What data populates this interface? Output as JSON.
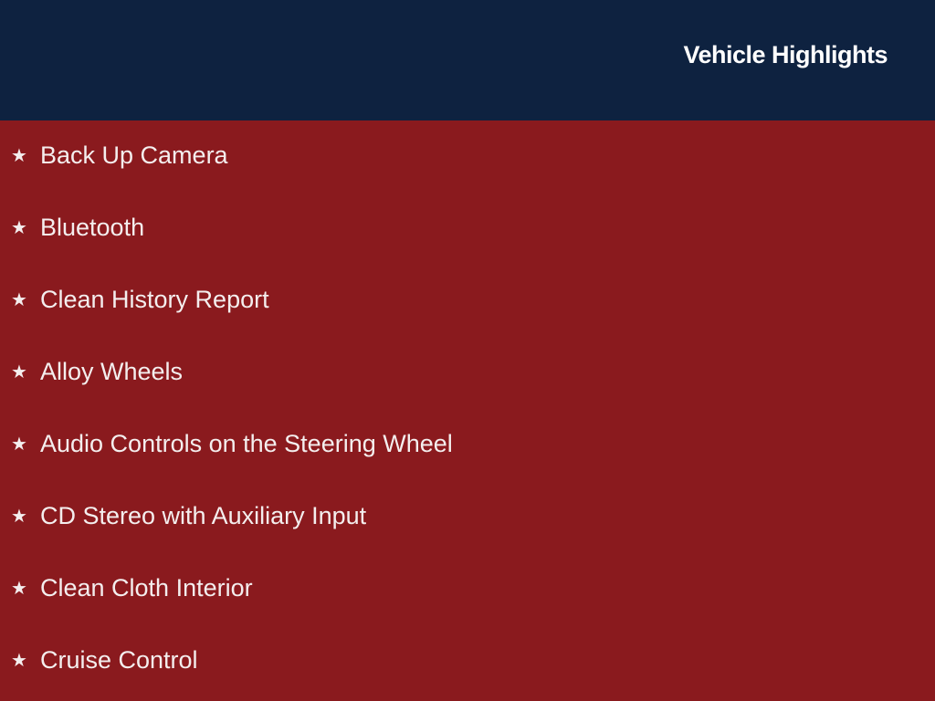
{
  "header": {
    "title": "Vehicle Highlights"
  },
  "colors": {
    "header_bg": "#0e2240",
    "body_bg": "#8a1a1e",
    "text": "#ffffff"
  },
  "highlights": {
    "icon": "star-icon",
    "items": [
      "Back Up Camera",
      "Bluetooth",
      "Clean History Report",
      "Alloy Wheels",
      "Audio Controls on the Steering Wheel",
      "CD Stereo with Auxiliary Input",
      "Clean Cloth Interior",
      "Cruise Control"
    ]
  }
}
